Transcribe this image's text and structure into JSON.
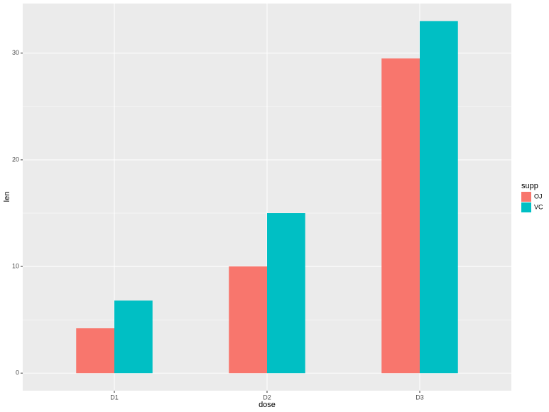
{
  "chart_data": {
    "type": "bar",
    "x_label": "dose",
    "y_label": "len",
    "legend_title": "supp",
    "categories": [
      "D1",
      "D2",
      "D3"
    ],
    "series": [
      {
        "name": "OJ",
        "color": "#F8766D",
        "values": [
          4.2,
          10,
          29.5
        ]
      },
      {
        "name": "VC",
        "color": "#00BFC4",
        "values": [
          6.8,
          15,
          33
        ]
      }
    ],
    "ylim": [
      -1.65,
      34.65
    ],
    "yticks": [
      0,
      10,
      20,
      30
    ],
    "minor_yticks": [
      5,
      15,
      25
    ],
    "grid": true,
    "legend_position": "right",
    "panel_color": "#EBEBEB"
  }
}
